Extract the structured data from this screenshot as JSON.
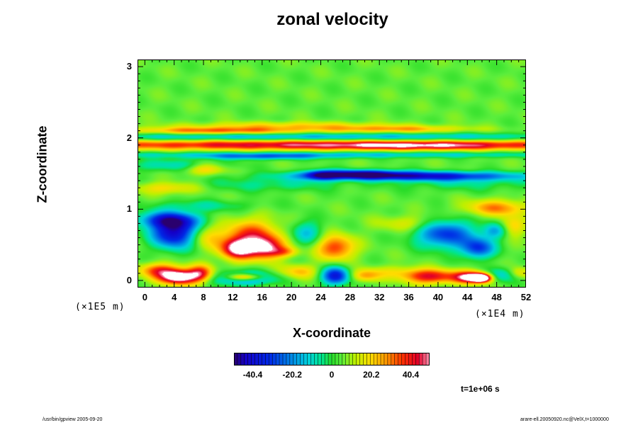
{
  "chart_data": {
    "type": "heatmap",
    "title": "zonal velocity",
    "xlabel": "X-coordinate",
    "ylabel": "Z-coordinate",
    "x_multiplier": "(×1E4 m)",
    "y_multiplier": "(×1E5 m)",
    "x_ticks": [
      "0",
      "4",
      "8",
      "12",
      "16",
      "20",
      "24",
      "28",
      "32",
      "36",
      "40",
      "44",
      "48",
      "52"
    ],
    "y_ticks": [
      "0",
      "1",
      "2",
      "3"
    ],
    "xlim": [
      -1,
      52
    ],
    "ylim": [
      -0.1,
      3.1
    ],
    "colorbar": {
      "ticks": [
        "-40.4",
        "-20.2",
        "0",
        "20.2",
        "40.4"
      ],
      "range": [
        -50,
        50
      ]
    },
    "background_value": 5,
    "features": [
      {
        "x": 26,
        "y": 1.91,
        "sx": 30,
        "sy": 0.05,
        "v": 42
      },
      {
        "x": 38,
        "y": 1.89,
        "sx": 8,
        "sy": 0.04,
        "v": 12
      },
      {
        "x": 24,
        "y": 2.02,
        "sx": 28,
        "sy": 0.04,
        "v": -22
      },
      {
        "x": 10,
        "y": 2.11,
        "sx": 8,
        "sy": 0.035,
        "v": 28
      },
      {
        "x": 34,
        "y": 2.13,
        "sx": 7,
        "sy": 0.035,
        "v": 20
      },
      {
        "x": 20,
        "y": 2.18,
        "sx": 10,
        "sy": 0.04,
        "v": 15
      },
      {
        "x": 26,
        "y": 1.77,
        "sx": 26,
        "sy": 0.03,
        "v": -18
      },
      {
        "x": 16,
        "y": 1.74,
        "sx": 6,
        "sy": 0.03,
        "v": -20
      },
      {
        "x": 36,
        "y": 1.47,
        "sx": 10,
        "sy": 0.045,
        "v": -44
      },
      {
        "x": 24,
        "y": 1.48,
        "sx": 1.5,
        "sy": 0.05,
        "v": -30
      },
      {
        "x": 29,
        "y": 1.5,
        "sx": 4,
        "sy": 0.04,
        "v": -36
      },
      {
        "x": 4,
        "y": 1.62,
        "sx": 5,
        "sy": 0.06,
        "v": -14
      },
      {
        "x": 8,
        "y": 1.57,
        "sx": 2,
        "sy": 0.06,
        "v": 20
      },
      {
        "x": 17,
        "y": 1.35,
        "sx": 7,
        "sy": 0.07,
        "v": -10
      },
      {
        "x": 44,
        "y": 1.38,
        "sx": 7,
        "sy": 0.08,
        "v": -10
      },
      {
        "x": 3,
        "y": 1.3,
        "sx": 3,
        "sy": 0.06,
        "v": 16
      },
      {
        "x": 48,
        "y": 1.02,
        "sx": 3,
        "sy": 0.08,
        "v": 24
      },
      {
        "x": 8,
        "y": 1.05,
        "sx": 5,
        "sy": 0.06,
        "v": -10
      },
      {
        "x": 4,
        "y": 0.67,
        "sx": 2.2,
        "sy": 0.15,
        "v": -50
      },
      {
        "x": 3,
        "y": 0.85,
        "sx": 3,
        "sy": 0.08,
        "v": -34
      },
      {
        "x": 8,
        "y": 0.62,
        "sx": 1.8,
        "sy": 0.12,
        "v": 16
      },
      {
        "x": 14.5,
        "y": 0.6,
        "sx": 2.6,
        "sy": 0.17,
        "v": 34
      },
      {
        "x": 12.5,
        "y": 0.44,
        "sx": 1.6,
        "sy": 0.1,
        "v": 40
      },
      {
        "x": 16.5,
        "y": 0.45,
        "sx": 1.6,
        "sy": 0.1,
        "v": 34
      },
      {
        "x": 22,
        "y": 0.67,
        "sx": 1.5,
        "sy": 0.12,
        "v": -18
      },
      {
        "x": 26,
        "y": 0.46,
        "sx": 1.8,
        "sy": 0.12,
        "v": 32
      },
      {
        "x": 19,
        "y": 0.4,
        "sx": 1.3,
        "sy": 0.05,
        "v": 18
      },
      {
        "x": 41,
        "y": 0.65,
        "sx": 2.8,
        "sy": 0.14,
        "v": -36
      },
      {
        "x": 45.5,
        "y": 0.45,
        "sx": 1.6,
        "sy": 0.1,
        "v": -34
      },
      {
        "x": 48,
        "y": 0.7,
        "sx": 1.3,
        "sy": 0.08,
        "v": -24
      },
      {
        "x": 50,
        "y": 0.75,
        "sx": 1.3,
        "sy": 0.1,
        "v": 20
      },
      {
        "x": 36,
        "y": 0.8,
        "sx": 3,
        "sy": 0.08,
        "v": 12
      },
      {
        "x": 4.5,
        "y": 0.04,
        "sx": 1.9,
        "sy": 0.07,
        "v": 55
      },
      {
        "x": 2,
        "y": 0.14,
        "sx": 2,
        "sy": 0.07,
        "v": 30
      },
      {
        "x": 7.5,
        "y": 0.1,
        "sx": 1.2,
        "sy": 0.08,
        "v": 32
      },
      {
        "x": 13.5,
        "y": 0.03,
        "sx": 2.6,
        "sy": 0.06,
        "v": -50
      },
      {
        "x": 13.5,
        "y": 0.04,
        "sx": 1.8,
        "sy": 0.04,
        "v": 60
      },
      {
        "x": 26,
        "y": 0.06,
        "sx": 1.4,
        "sy": 0.09,
        "v": -42
      },
      {
        "x": 21,
        "y": 0.12,
        "sx": 1.8,
        "sy": 0.07,
        "v": 18
      },
      {
        "x": 30,
        "y": 0.06,
        "sx": 1.5,
        "sy": 0.06,
        "v": 20
      },
      {
        "x": 39,
        "y": 0.05,
        "sx": 2.6,
        "sy": 0.07,
        "v": 38
      },
      {
        "x": 44.5,
        "y": 0.04,
        "sx": 1.6,
        "sy": 0.06,
        "v": 48
      },
      {
        "x": 46,
        "y": 0.03,
        "sx": 0.9,
        "sy": 0.04,
        "v": 60
      },
      {
        "x": 49,
        "y": 0.08,
        "sx": 1.6,
        "sy": 0.07,
        "v": -20
      },
      {
        "x": 51,
        "y": 0.1,
        "sx": 1.2,
        "sy": 0.06,
        "v": 18
      },
      {
        "x": 34,
        "y": 0.12,
        "sx": 3,
        "sy": 0.06,
        "v": 10
      }
    ]
  },
  "time_label": "t=1e+06 s",
  "footer": {
    "left": "/usr/bin/gpview 2005-09-20",
    "right": "arare-ell.20050920.nc@VelX,t=1000000"
  }
}
